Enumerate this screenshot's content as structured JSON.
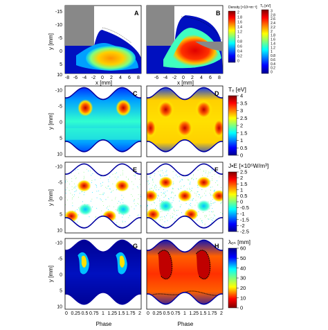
{
  "figure": {
    "panel_labels": [
      "A",
      "B",
      "C",
      "D",
      "E",
      "F",
      "G",
      "H"
    ],
    "xlabel_top": "x [mm]",
    "xlabel_bottom": "Phase",
    "ylabel": "y [mm]",
    "y_ticks": [
      "-15",
      "-10",
      "-5",
      "0",
      "5",
      "10"
    ],
    "y_ticks_row": [
      "-10",
      "-5",
      "0",
      "5",
      "10"
    ],
    "x_ticks_top": [
      "-8",
      "-6",
      "-4",
      "-2",
      "0",
      "2",
      "4",
      "6",
      "8"
    ],
    "x_ticks_top_b": [
      "-6",
      "-4",
      "-2",
      "0",
      "2",
      "4",
      "6",
      "8"
    ],
    "phase_ticks": [
      "0",
      "0.25",
      "0.5",
      "0.75",
      "1",
      "1.25",
      "1.5",
      "1.75",
      "2"
    ],
    "colorbars": {
      "density": {
        "title": "Density [×10¹⁸m⁻³]",
        "ticks": [
          "2",
          "1.8",
          "1.6",
          "1.4",
          "1.2",
          "1",
          "0.8",
          "0.6",
          "0.4",
          "0.2",
          "0"
        ],
        "colors": [
          "#000090",
          "#0000ff",
          "#0060ff",
          "#00c0ff",
          "#40ffc0",
          "#a0ff60",
          "#ffff00",
          "#ffa000",
          "#ff4000",
          "#d00000",
          "#800000"
        ]
      },
      "te_small": {
        "title": "Tₑ [eV]",
        "ticks": [
          "3",
          "2.8",
          "2.6",
          "2.4",
          "2.2",
          "2",
          "1.8",
          "1.6",
          "1.4",
          "1.2",
          "1",
          "0.8",
          "0.6",
          "0.4",
          "0.2",
          "0"
        ]
      },
      "te": {
        "title": "Tₑ [eV]",
        "ticks": [
          "4",
          "3.5",
          "3",
          "2.5",
          "2",
          "1.5",
          "1",
          "0.5",
          "0"
        ]
      },
      "je": {
        "title": "J•E [×10⁵W/m³]",
        "ticks": [
          "2.5",
          "2",
          "1.5",
          "1",
          "0.5",
          "0",
          "-0.5",
          "-1",
          "-1.5",
          "-2",
          "-2.5"
        ]
      },
      "lambda": {
        "title": "λₑₙ [mm]",
        "ticks": [
          "60",
          "50",
          "40",
          "30",
          "20",
          "10",
          "0"
        ],
        "colors": [
          "#800000",
          "#ff0000",
          "#ff8000",
          "#ffff00",
          "#80ff80",
          "#00e0ff",
          "#0060ff",
          "#0000c0"
        ]
      }
    }
  }
}
